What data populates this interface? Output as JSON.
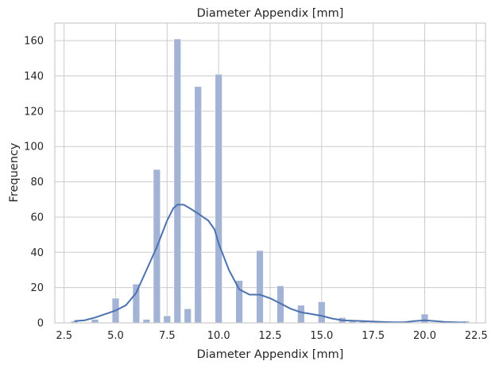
{
  "chart_data": {
    "type": "bar",
    "title": "Diameter Appendix [mm]",
    "xlabel": "Diameter Appendix [mm]",
    "ylabel": "Frequency",
    "xlim": [
      2.05,
      22.95
    ],
    "ylim": [
      0,
      170
    ],
    "xticks": [
      2.5,
      5.0,
      7.5,
      10.0,
      12.5,
      15.0,
      17.5,
      20.0,
      22.5
    ],
    "xtick_labels": [
      "2.5",
      "5.0",
      "7.5",
      "10.0",
      "12.5",
      "15.0",
      "17.5",
      "20.0",
      "22.5"
    ],
    "yticks": [
      0,
      20,
      40,
      60,
      80,
      100,
      120,
      140,
      160
    ],
    "ytick_labels": [
      "0",
      "20",
      "40",
      "60",
      "80",
      "100",
      "120",
      "140",
      "160"
    ],
    "grid": true,
    "colors": {
      "bar": "#a3b3d5",
      "kde": "#4c72b0",
      "grid": "#cccccc"
    },
    "bins": {
      "x": [
        3.0,
        3.5,
        4.0,
        4.5,
        5.0,
        5.5,
        6.0,
        6.5,
        7.0,
        7.5,
        8.0,
        8.5,
        9.0,
        9.5,
        10.0,
        10.5,
        11.0,
        11.5,
        12.0,
        12.5,
        13.0,
        13.5,
        14.0,
        14.5,
        15.0,
        15.5,
        16.0,
        16.5,
        17.0,
        17.5,
        18.0,
        18.5,
        19.0,
        19.5,
        20.0,
        20.5,
        21.0,
        21.5,
        22.0
      ],
      "values": [
        1,
        0,
        2,
        0,
        14,
        0,
        22,
        2,
        87,
        4,
        161,
        8,
        134,
        0,
        141,
        0,
        24,
        0,
        41,
        0,
        21,
        0,
        10,
        0,
        12,
        0,
        3,
        1,
        1,
        0,
        0,
        0,
        0,
        0,
        5,
        0,
        1,
        0,
        1
      ]
    },
    "series": [
      {
        "type": "kde",
        "x": [
          3.0,
          3.5,
          4.0,
          4.5,
          5.0,
          5.5,
          6.0,
          6.5,
          7.0,
          7.5,
          7.8,
          8.0,
          8.3,
          8.6,
          9.0,
          9.5,
          9.8,
          10.0,
          10.5,
          11.0,
          11.5,
          12.0,
          12.5,
          13.0,
          13.5,
          14.0,
          14.5,
          15.0,
          15.5,
          16.0,
          17.0,
          18.0,
          18.5,
          19.0,
          19.5,
          20.0,
          20.5,
          21.0,
          22.0
        ],
        "y": [
          1,
          1.5,
          3,
          5,
          7,
          10,
          17,
          30,
          43,
          58,
          65,
          67,
          67,
          65,
          62,
          58,
          53,
          45,
          30,
          19,
          16,
          16,
          14,
          11,
          8,
          6,
          5,
          4,
          2.5,
          1.5,
          1,
          0.5,
          0.3,
          0.3,
          1,
          1.5,
          1,
          0.5,
          0.2
        ]
      }
    ]
  }
}
